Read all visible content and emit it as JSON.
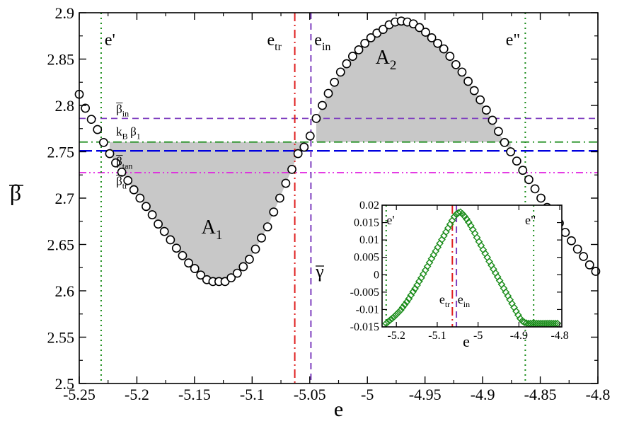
{
  "chart_data": [
    {
      "type": "scatter",
      "xlabel": "e",
      "ylabel": "β̄",
      "xlim": [
        -5.25,
        -4.8
      ],
      "ylim": [
        2.5,
        2.9
      ],
      "xticks": [
        -5.25,
        -5.2,
        -5.15,
        -5.1,
        -5.05,
        -5,
        -4.95,
        -4.9,
        -4.85,
        -4.8
      ],
      "xtick_labels": [
        "-5.25",
        "-5.2",
        "-5.15",
        "-5.1",
        "-5.05",
        "-5",
        "-4.95",
        "-4.9",
        "-4.85",
        "-4.8"
      ],
      "yticks": [
        2.5,
        2.55,
        2.6,
        2.65,
        2.7,
        2.75,
        2.8,
        2.85,
        2.9
      ],
      "ytick_labels": [
        "2.5",
        "2.55",
        "2.6",
        "2.65",
        "2.7",
        "2.75",
        "2.8",
        "2.85",
        "2.9"
      ],
      "grid": false,
      "series": [
        {
          "marker": "open-circle",
          "color": "#000000",
          "x": [
            -5.25,
            -5.2447,
            -5.2395,
            -5.2342,
            -5.2289,
            -5.2236,
            -5.2184,
            -5.2131,
            -5.2078,
            -5.2026,
            -5.1973,
            -5.192,
            -5.1867,
            -5.1815,
            -5.1762,
            -5.1709,
            -5.1657,
            -5.1604,
            -5.1551,
            -5.1498,
            -5.1446,
            -5.1393,
            -5.134,
            -5.1288,
            -5.1235,
            -5.1182,
            -5.1129,
            -5.1077,
            -5.1024,
            -5.0971,
            -5.0919,
            -5.0866,
            -5.0813,
            -5.076,
            -5.0708,
            -5.0655,
            -5.0602,
            -5.0549,
            -5.0497,
            -5.0444,
            -5.0391,
            -5.0339,
            -5.0286,
            -5.0233,
            -5.018,
            -5.0128,
            -5.0075,
            -5.0022,
            -4.997,
            -4.9917,
            -4.9864,
            -4.9811,
            -4.9759,
            -4.9706,
            -4.9653,
            -4.9601,
            -4.9548,
            -4.9495,
            -4.9442,
            -4.939,
            -4.9337,
            -4.9284,
            -4.9232,
            -4.9179,
            -4.9126,
            -4.9073,
            -4.9021,
            -4.8968,
            -4.8915,
            -4.8863,
            -4.881,
            -4.8757,
            -4.8704,
            -4.8652,
            -4.8599,
            -4.8546,
            -4.8494,
            -4.8441,
            -4.8388,
            -4.8335,
            -4.8283,
            -4.823,
            -4.8177,
            -4.8125,
            -4.8072,
            -4.8019
          ],
          "y": [
            2.812,
            2.797,
            2.785,
            2.774,
            2.76,
            2.748,
            2.738,
            2.728,
            2.719,
            2.709,
            2.7,
            2.691,
            2.682,
            2.672,
            2.664,
            2.655,
            2.646,
            2.638,
            2.63,
            2.624,
            2.617,
            2.612,
            2.61,
            2.61,
            2.61,
            2.614,
            2.619,
            2.626,
            2.634,
            2.645,
            2.657,
            2.669,
            2.685,
            2.7,
            2.716,
            2.731,
            2.748,
            2.755,
            2.767,
            2.786,
            2.8,
            2.813,
            2.825,
            2.836,
            2.845,
            2.853,
            2.86,
            2.867,
            2.873,
            2.878,
            2.882,
            2.887,
            2.89,
            2.891,
            2.89,
            2.888,
            2.884,
            2.879,
            2.873,
            2.867,
            2.861,
            2.853,
            2.844,
            2.836,
            2.826,
            2.816,
            2.806,
            2.795,
            2.784,
            2.772,
            2.76,
            2.75,
            2.74,
            2.73,
            2.72,
            2.71,
            2.7,
            2.69,
            2.682,
            2.673,
            2.663,
            2.654,
            2.645,
            2.637,
            2.628,
            2.621
          ]
        }
      ],
      "shaded_regions": [
        {
          "label": "A1",
          "label_text": "A",
          "label_sub": "1",
          "color": "#c8c8c8",
          "x_from": -5.2236,
          "x_to": -5.0549,
          "upper": 2.7605
        },
        {
          "label": "A2",
          "label_text": "A",
          "label_sub": "2",
          "color": "#c8c8c8",
          "x_from": -5.0444,
          "x_to": -4.8757,
          "lower": 2.7605
        }
      ],
      "hlines": [
        {
          "name": "beta_in",
          "y": 2.786,
          "color": "#7f3fbf",
          "style": "dash",
          "label": "β",
          "label_sub": "in",
          "bar": true
        },
        {
          "name": "kb_beta1",
          "y": 2.7605,
          "color": "#1a8c1a",
          "style": "dashdot",
          "label": "kBβ",
          "label_sub": "1"
        },
        {
          "name": "beta_tan",
          "y": 2.751,
          "color": "#0000e0",
          "style": "longdash",
          "label": "β",
          "label_sub": "tan",
          "bar": true
        },
        {
          "name": "beta_tr",
          "y": 2.7275,
          "color": "#e020e0",
          "style": "dashdotdot",
          "label": "β",
          "label_sub": "tr",
          "bar": true
        }
      ],
      "vlines": [
        {
          "name": "e_prime",
          "x": -5.231,
          "color": "#1a8c1a",
          "style": "dot",
          "label": "e'"
        },
        {
          "name": "e_tr",
          "x": -5.063,
          "color": "#e02020",
          "style": "dashdot",
          "label": "e",
          "label_sub": "tr"
        },
        {
          "name": "e_in",
          "x": -5.049,
          "color": "#7f3fbf",
          "style": "dash",
          "label": "e",
          "label_sub": "in"
        },
        {
          "name": "e_dprime",
          "x": -4.863,
          "color": "#1a8c1a",
          "style": "dot",
          "label": "e\""
        }
      ]
    },
    {
      "type": "scatter",
      "inset": true,
      "xlabel": "e",
      "ylabel": "γ̄",
      "xlim": [
        -5.235,
        -4.795
      ],
      "ylim": [
        -0.015,
        0.02
      ],
      "xticks": [
        -5.2,
        -5.1,
        -5,
        -4.9,
        -4.8
      ],
      "xtick_labels": [
        "-5.2",
        "-5.1",
        "-5",
        "-4.9",
        "-4.8"
      ],
      "yticks": [
        -0.015,
        -0.01,
        -0.005,
        0,
        0.005,
        0.01,
        0.015,
        0.02
      ],
      "ytick_labels": [
        "-0.015",
        "-0.01",
        "-0.005",
        "0",
        "0.005",
        "0.01",
        "0.015",
        "0.02"
      ],
      "series": [
        {
          "marker": "open-diamond",
          "color": "#1a8c1a",
          "x": [
            -5.225,
            -5.2199,
            -5.2149,
            -5.2098,
            -5.2048,
            -5.1997,
            -5.1947,
            -5.1896,
            -5.1846,
            -5.1795,
            -5.1745,
            -5.1694,
            -5.1644,
            -5.1593,
            -5.1543,
            -5.1492,
            -5.1442,
            -5.1391,
            -5.1341,
            -5.129,
            -5.124,
            -5.1189,
            -5.1139,
            -5.1088,
            -5.1038,
            -5.0987,
            -5.0937,
            -5.0886,
            -5.0836,
            -5.0785,
            -5.0735,
            -5.0684,
            -5.0634,
            -5.0583,
            -5.0533,
            -5.0482,
            -5.0432,
            -5.0381,
            -5.0331,
            -5.028,
            -5.023,
            -5.0179,
            -5.0129,
            -5.0078,
            -5.0028,
            -4.9977,
            -4.9927,
            -4.9876,
            -4.9826,
            -4.9775,
            -4.9725,
            -4.9674,
            -4.9624,
            -4.9573,
            -4.9523,
            -4.9472,
            -4.9422,
            -4.9371,
            -4.9321,
            -4.927,
            -4.922,
            -4.9169,
            -4.9119,
            -4.9068,
            -4.9018,
            -4.8967,
            -4.8917,
            -4.8866,
            -4.8816,
            -4.8765,
            -4.8715,
            -4.8664,
            -4.8614,
            -4.8563,
            -4.8513,
            -4.8462,
            -4.8412,
            -4.8361,
            -4.8311,
            -4.826,
            -4.821,
            -4.8159,
            -4.8109,
            -4.8058
          ],
          "y": [
            -0.014,
            -0.0135,
            -0.013,
            -0.0125,
            -0.012,
            -0.0114,
            -0.0108,
            -0.0102,
            -0.0094,
            -0.0086,
            -0.0078,
            -0.0069,
            -0.0059,
            -0.0049,
            -0.004,
            -0.003,
            -0.0019,
            -0.0009,
            0.0002,
            0.0013,
            0.0024,
            0.0035,
            0.0046,
            0.0057,
            0.0068,
            0.0079,
            0.009,
            0.0101,
            0.0112,
            0.0123,
            0.0134,
            0.0145,
            0.0156,
            0.0167,
            0.0174,
            0.0178,
            0.018,
            0.0175,
            0.0168,
            0.016,
            0.0151,
            0.0141,
            0.013,
            0.0119,
            0.0107,
            0.0095,
            0.0084,
            0.0072,
            0.0061,
            0.005,
            0.0038,
            0.0027,
            0.0016,
            0.0005,
            -0.0006,
            -0.0017,
            -0.0028,
            -0.0039,
            -0.005,
            -0.0061,
            -0.0072,
            -0.0083,
            -0.0094,
            -0.0105,
            -0.0116,
            -0.0126,
            -0.0133,
            -0.0137,
            -0.0139,
            -0.014,
            -0.014,
            -0.014,
            -0.014,
            -0.014,
            -0.014,
            -0.014,
            -0.014,
            -0.014,
            -0.014,
            -0.014,
            -0.014,
            -0.014,
            -0.014,
            -0.014
          ]
        }
      ],
      "vlines": [
        {
          "name": "e_prime",
          "x": -5.225,
          "color": "#1a8c1a",
          "style": "dot",
          "label": "e'"
        },
        {
          "name": "e_tr",
          "x": -5.063,
          "color": "#e02020",
          "style": "dashdot",
          "label": "e",
          "label_sub": "tr"
        },
        {
          "name": "e_in",
          "x": -5.053,
          "color": "#7f3fbf",
          "style": "dash",
          "label": "e",
          "label_sub": "in"
        },
        {
          "name": "e_dprime",
          "x": -4.864,
          "color": "#1a8c1a",
          "style": "dot",
          "label": "e\""
        }
      ]
    }
  ]
}
